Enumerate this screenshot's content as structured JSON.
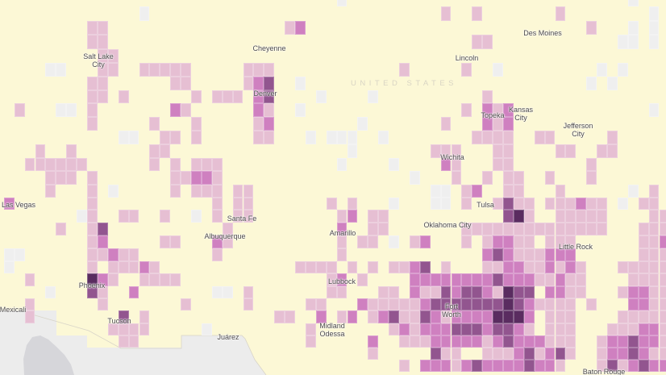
{
  "colors": {
    "background": "#fcf8d6",
    "outside_country": "#ececec",
    "water_gulf": "#d6d6da",
    "no_data": "#efefef",
    "level_1": "#e6bfd3",
    "level_2": "#cf80c0",
    "level_3": "#92558f",
    "level_4": "#5a2c60"
  },
  "country_label": "UNITED STATES",
  "cities": {
    "salt_lake_city": [
      "Salt Lake",
      "City"
    ],
    "cheyenne": "Cheyenne",
    "des_moines": "Des Moines",
    "lincoln": "Lincoln",
    "denver": "Denver",
    "topeka": "Topeka",
    "kansas_city": [
      "Kansas",
      "City"
    ],
    "jefferson_city": [
      "Jefferson",
      "City"
    ],
    "wichita": "Wichita",
    "las_vegas": "Las Vegas",
    "tulsa": "Tulsa",
    "santa_fe": "Santa Fe",
    "oklahoma_city": "Oklahoma City",
    "albuquerque": "Albuquerque",
    "amarillo": "Amarillo",
    "little_rock": "Little Rock",
    "phoenix": "Phoenix",
    "lubbock": "Lubbock",
    "mexicali": "Mexicali",
    "fort_worth": [
      "Fort",
      "Worth"
    ],
    "tucson": "Tucson",
    "midland_odessa": [
      "Midland",
      "Odessa"
    ],
    "juarez": "Juárez",
    "baton_rouge": "Baton Rouge"
  },
  "grid_rows": [
    "32:g 60:g",
    "13:g 42:1 45:1 53:1 62:g",
    "8-9:1 27:1 28:2 56:1 60:g 62:g",
    "8-9:1 45-46:1 59-60:g 62:g",
    "9-10:1",
    "4-5:g 9-10:1 13-17:1 23-25:1 38:1 44:1 47:g 57:g 59:g",
    "8-9:1 16-17:1 23:1 24:2 25:3 28:g 56:g 58:g",
    "8-9:1 11:1 18:1 20-22:1 24:2 25:3 30:g 35:g 46:1",
    "1:1 5-6:g 8:1 16:2 17:1 24:2 25:1 28:g 44:1 46:2 47:1 48:2 62:g",
    "8:1 14:1 18:1 24:1 25:2 34:g 42:1 46:2 47:1 48:2",
    "11-12:g 15-16:1 18:1 24-25:1 29:g 31:g 32-33:g 36:g 45-48:1 51-52:1 58:1",
    "3:1 6:1 14-15:1 33:g 41-43:1 47-48:1 53-54:1 57-58:1",
    "2-7:1 14:1 16:1 18-20:1 32:g 37:g 42:2 43:1 47-48:1 56:1",
    "4-6:1 8:1 16-17:1 18-19:2 20:1 39:g 43:1 46:1 48-49:1 52:1 56:1",
    "4:1 8:1 10:g 16:1 18-20:1 22-23:1 41-42:g 44:1 45:2 48-49:1 53:1 60:g 62:1",
    "0:2 8:1 20:1 22-23:1 31:1 33:1 37:g 41-42:g 44:1 47:1 48:3 49-50:1 52-54:1 55:2 56-57:1 59:g 61-62:1",
    "7:g 8:1 11-12:1 15:1 18:g 20:1 22-23:1 32:1 33:2 35-36:1 48:3 49:4 50:1 53-57:1 62-63:1",
    "5:1 8:1 9:3 21:1 32:2 35-36:1 44-57:1 61-63:1",
    "8:1 9:2 15-16:1 20:2 21:1 32:1 34-35:1 37:g 39:1 40:2 44:1 46:1 47-48:2 49-50:1 52-54:1 61-62:1 63:2",
    "0-1:g 8-9:1 10:2 11-12:1 20:1 32:1 46:2 47:3 48:2 49-51:1 52-54:2 61-63:1",
    "0:g 8:1 10-12:1 13:2 14:1 28-31:1 33:1 35:1 37-38:1 39:2 40:3 42:1 46-47:1 48-49:2 50-51:1 52:2 53:1 54:2 55:1 59-63:1",
    "2:1 8:4 9:2 10:1 13-16:1 31:1 32:2 34:1 39-46:2 47:3 48-50:2 51-52:1 53:2 54-55:1 60-63:1",
    "4:g 8:3 9:1 12:2 20-21:g 23:1 31-32:1 36-37:1 39:2 40-41:1 42:3 43:2 44-45:3 46:2 47:1 48:4 49-50:3 52-53:2 54-55:1 59:1 60-61:2 62-63:1",
    "2:1 9:1 17:1 23:1 29-30:1 34:2 35-39:1 40:2 41-47:3 48:4 49:3 50:2 51-54:1 56:1 60-61:2 62-63:1",
    "2:1 11:3 13:1 26-27:1 30:2 32:1 33:2 35:1 36:2 37:3 38-39:1 40:3 41:2 42:1 43-46:2 47-49:4 50:2 52-54:1 59-63:1",
    "10-13:1 19:g 29:1 37:1 38:2 39:1 40-42:2 43-45:3 46:2 47-48:3 49:2 50:1 52-54:1 58-60:1 61-62:2 63:1",
    "11-12:1 29:1 35:2 38-40:1 41-45:2 46:1 47:2 48:3 49-51:2 52-54:1 57:1 58-59:2 60:3 61-62:2 63:1",
    "35:1 41:3 42-43:1 46-48:1 49:2 50:3 51:1 52:2 53:3 54:1 57:1 58-59:2 60:3 61:2 62-63:1",
    "38:1 40-42:2 43:1 44:2 45:3 46-49:2 50:3 51-52:2 53:1 57:1 58:3 59:1 60:2 61:3 62-63:2"
  ]
}
